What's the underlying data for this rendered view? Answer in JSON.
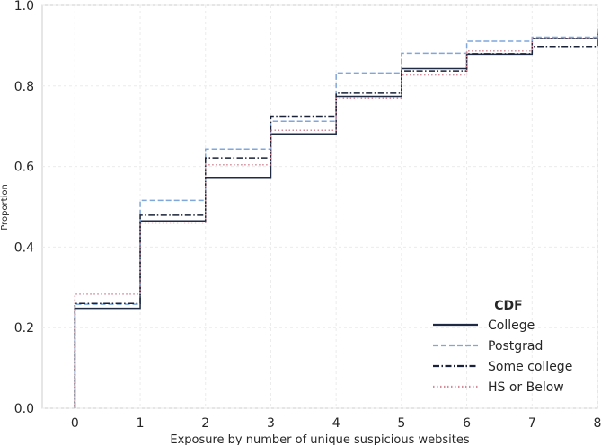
{
  "chart_data": {
    "type": "line",
    "step": true,
    "xlabel": "Exposure by number of unique suspicious websites",
    "ylabel": "Proportion",
    "xlim": [
      -0.5,
      8
    ],
    "ylim": [
      0,
      1
    ],
    "x_ticks": [
      "0",
      "1",
      "2",
      "3",
      "4",
      "5",
      "6",
      "7",
      "8"
    ],
    "y_ticks": [
      "0.0",
      "0.2",
      "0.4",
      "0.6",
      "0.8",
      "1.0"
    ],
    "grid": true,
    "legend": {
      "title": "CDF",
      "position": "bottom-right"
    },
    "x": [
      0,
      1,
      2,
      3,
      4,
      5,
      6,
      7,
      8
    ],
    "series": [
      {
        "name": "College",
        "color": "#1f2a44",
        "dash": "solid",
        "values": [
          0.248,
          0.465,
          0.573,
          0.681,
          0.774,
          0.843,
          0.879,
          0.918,
          0.934
        ]
      },
      {
        "name": "Postgrad",
        "color": "#7fa7dc",
        "dash": "dashed",
        "values": [
          0.258,
          0.516,
          0.643,
          0.712,
          0.832,
          0.881,
          0.911,
          0.921,
          0.945
        ]
      },
      {
        "name": "Some college",
        "color": "#1b2238",
        "dash": "dashdot",
        "values": [
          0.26,
          0.479,
          0.621,
          0.725,
          0.782,
          0.837,
          0.88,
          0.898,
          0.92
        ]
      },
      {
        "name": "HS or Below",
        "color": "#d38c9a",
        "dash": "dotted",
        "values": [
          0.283,
          0.46,
          0.604,
          0.69,
          0.77,
          0.827,
          0.887,
          0.917,
          0.928
        ]
      }
    ]
  }
}
